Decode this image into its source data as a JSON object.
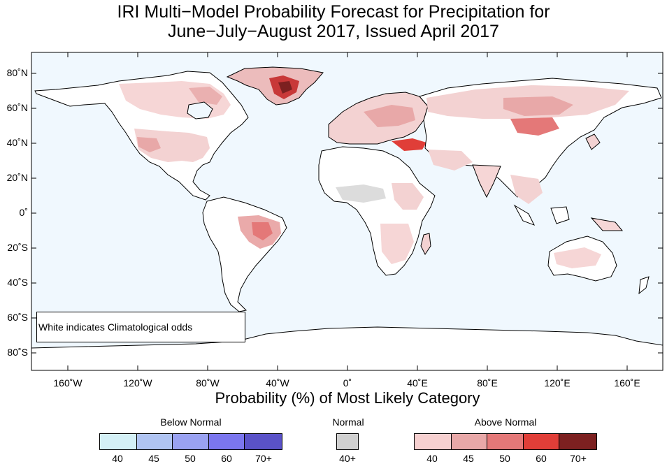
{
  "title": {
    "line1": "IRI Multi−Model Probability Forecast for Precipitation for",
    "line2": "June−July−August 2017, Issued April 2017"
  },
  "axes": {
    "y_ticks": [
      "80˚N",
      "60˚N",
      "40˚N",
      "20˚N",
      "0˚",
      "20˚S",
      "40˚S",
      "60˚S",
      "80˚S"
    ],
    "x_ticks": [
      "160˚W",
      "120˚W",
      "80˚W",
      "40˚W",
      "0˚",
      "40˚E",
      "80˚E",
      "120˚E",
      "160˚E"
    ],
    "x_title": "Probability (%) of Most Likely Category"
  },
  "note": "White indicates Climatological odds",
  "legend": {
    "below": {
      "title": "Below Normal",
      "labels": [
        "40",
        "45",
        "50",
        "60",
        "70+"
      ],
      "colors": [
        "#d4f0f6",
        "#b0c4f2",
        "#9aa2f2",
        "#7b76ee",
        "#5a52c8"
      ]
    },
    "normal": {
      "title": "Normal",
      "labels": [
        "40+"
      ],
      "colors": [
        "#d0d0d0"
      ]
    },
    "above": {
      "title": "Above Normal",
      "labels": [
        "40",
        "45",
        "50",
        "60",
        "70+"
      ],
      "colors": [
        "#f6d0d0",
        "#e8a8a8",
        "#e47878",
        "#e03e38",
        "#7c2020"
      ]
    }
  },
  "colors": {
    "ocean": "#f0f8fe",
    "land": "#ffffff",
    "coast": "#000000",
    "border": "#808080"
  }
}
